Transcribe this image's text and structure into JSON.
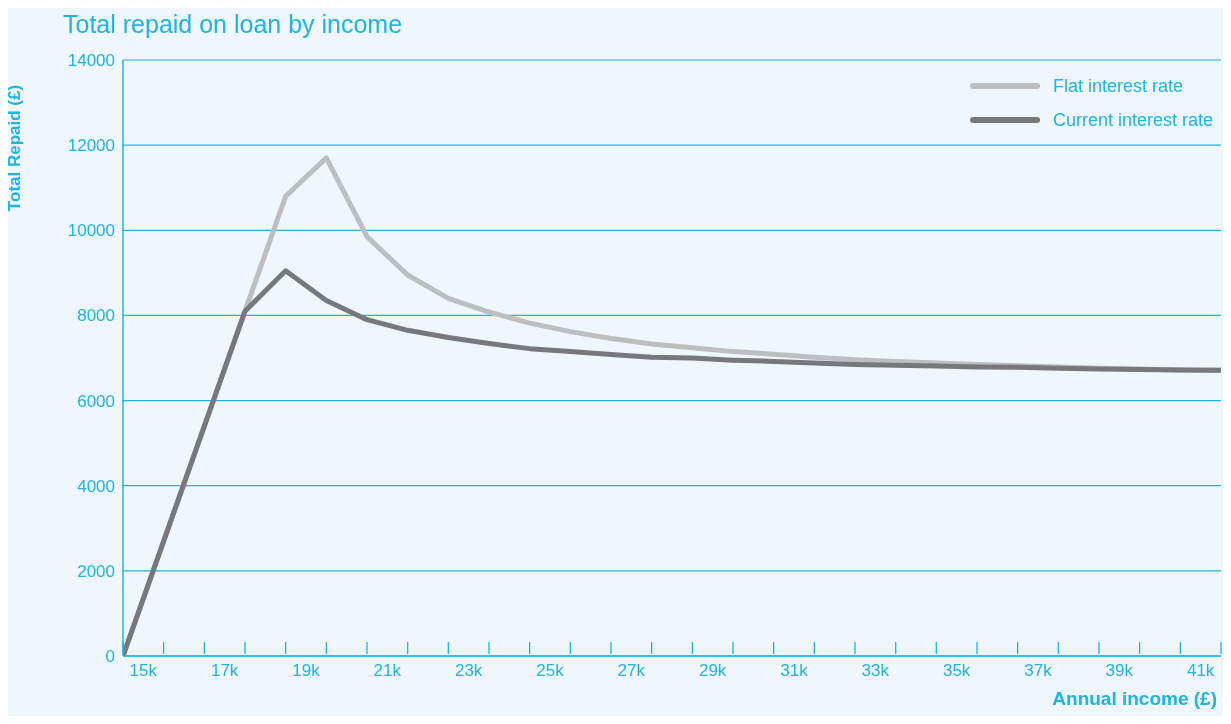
{
  "chart_data": {
    "type": "line",
    "title": "Total repaid on loan by income",
    "xlabel": "Annual income (£)",
    "ylabel": "Total Repaid (£)",
    "x": [
      14.5,
      15.5,
      16.5,
      17.5,
      18.5,
      19.5,
      20.5,
      21.5,
      22.5,
      23.5,
      24.5,
      25.5,
      26.5,
      27.5,
      28.5,
      29.5,
      30.5,
      31.5,
      32.5,
      33.5,
      34.5,
      35.5,
      36.5,
      37.5,
      38.5,
      39.5,
      40.5,
      41.5
    ],
    "series": [
      {
        "name": "Flat interest rate",
        "color": "#bcbec0",
        "values": [
          0,
          2700,
          5400,
          8100,
          10800,
          11700,
          9850,
          8950,
          8400,
          8080,
          7820,
          7620,
          7460,
          7330,
          7240,
          7150,
          7090,
          7020,
          6960,
          6920,
          6880,
          6850,
          6820,
          6790,
          6760,
          6740,
          6720,
          6710
        ]
      },
      {
        "name": "Current interest rate",
        "color": "#77787b",
        "values": [
          0,
          2700,
          5400,
          8100,
          9050,
          8350,
          7900,
          7650,
          7480,
          7340,
          7220,
          7150,
          7080,
          7020,
          7000,
          6950,
          6920,
          6880,
          6850,
          6830,
          6810,
          6790,
          6780,
          6760,
          6740,
          6730,
          6720,
          6710
        ]
      }
    ],
    "xlim": [
      14.5,
      41.5
    ],
    "xticks": [
      {
        "value": 14.5,
        "label": null
      },
      {
        "value": 15,
        "label": "15k"
      },
      {
        "value": 15.5,
        "label": null
      },
      {
        "value": 16.5,
        "label": null
      },
      {
        "value": 17,
        "label": "17k"
      },
      {
        "value": 17.5,
        "label": null
      },
      {
        "value": 18.5,
        "label": null
      },
      {
        "value": 19,
        "label": "19k"
      },
      {
        "value": 19.5,
        "label": null
      },
      {
        "value": 20.5,
        "label": null
      },
      {
        "value": 21,
        "label": "21k"
      },
      {
        "value": 21.5,
        "label": null
      },
      {
        "value": 22.5,
        "label": null
      },
      {
        "value": 23,
        "label": "23k"
      },
      {
        "value": 23.5,
        "label": null
      },
      {
        "value": 24.5,
        "label": null
      },
      {
        "value": 25,
        "label": "25k"
      },
      {
        "value": 25.5,
        "label": null
      },
      {
        "value": 26.5,
        "label": null
      },
      {
        "value": 27,
        "label": "27k"
      },
      {
        "value": 27.5,
        "label": null
      },
      {
        "value": 28.5,
        "label": null
      },
      {
        "value": 29,
        "label": "29k"
      },
      {
        "value": 29.5,
        "label": null
      },
      {
        "value": 30.5,
        "label": null
      },
      {
        "value": 31,
        "label": "31k"
      },
      {
        "value": 31.5,
        "label": null
      },
      {
        "value": 32.5,
        "label": null
      },
      {
        "value": 33,
        "label": "33k"
      },
      {
        "value": 33.5,
        "label": null
      },
      {
        "value": 34.5,
        "label": null
      },
      {
        "value": 35,
        "label": "35k"
      },
      {
        "value": 35.5,
        "label": null
      },
      {
        "value": 36.5,
        "label": null
      },
      {
        "value": 37,
        "label": "37k"
      },
      {
        "value": 37.5,
        "label": null
      },
      {
        "value": 38.5,
        "label": null
      },
      {
        "value": 39,
        "label": "39k"
      },
      {
        "value": 39.5,
        "label": null
      },
      {
        "value": 40.5,
        "label": null
      },
      {
        "value": 41,
        "label": "41k"
      },
      {
        "value": 41.5,
        "label": null
      }
    ],
    "ylim": [
      0,
      14000
    ],
    "yticks": [
      0,
      2000,
      4000,
      6000,
      8000,
      10000,
      12000,
      14000
    ],
    "grid": "y",
    "legend": "top right",
    "marker": "none",
    "line_style": "solid"
  }
}
